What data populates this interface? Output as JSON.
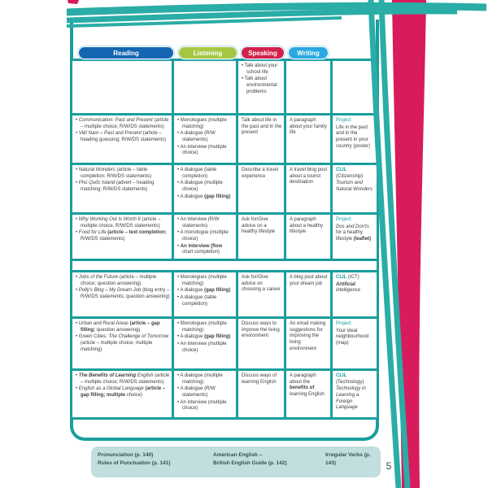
{
  "page": {
    "number": "5"
  },
  "colors": {
    "teal": "#1a9e9e",
    "pink": "#d81b5c",
    "reading_blue": "#1466b3",
    "listening_green": "#a5c844",
    "speaking_red": "#d2224c",
    "writing_cyan": "#2aa8df",
    "footer_bg": "#c3dede"
  },
  "header": {
    "columns": [
      {
        "label": "Reading",
        "color": "#1466b3"
      },
      {
        "label": "Listening",
        "color": "#a5c844"
      },
      {
        "label": "Speaking",
        "color": "#d2224c"
      },
      {
        "label": "Writing",
        "color": "#2aa8df"
      }
    ]
  },
  "table": {
    "rows": [
      {
        "cells": [
          {},
          {},
          {
            "bullets": [
              [
                {
                  "t": "Talk about your school life"
                }
              ],
              [
                {
                  "t": "Talk about environmental problems"
                }
              ]
            ]
          },
          {},
          {}
        ]
      },
      {
        "cells": [
          {
            "bullets": [
              [
                {
                  "t": "Communication: Past and Present ",
                  "s": "i"
                },
                {
                  "t": "(article – multiple choice; R/W/DS statements)"
                }
              ],
              [
                {
                  "t": "Việt Nam – Past and Present ",
                  "s": "i"
                },
                {
                  "t": "(article – heading guessing; R/W/DS statements)"
                }
              ]
            ]
          },
          {
            "bullets": [
              [
                {
                  "t": "Monologues (multiple matching)"
                }
              ],
              [
                {
                  "t": "A dialogue (R/W statements)"
                }
              ],
              [
                {
                  "t": "An interview (multiple choice)"
                }
              ]
            ]
          },
          {
            "lines": [
              [
                {
                  "t": "Talk about life in the past and in the present"
                }
              ]
            ]
          },
          {
            "lines": [
              [
                {
                  "t": "A paragraph about your family life"
                }
              ]
            ]
          },
          {
            "lines": [
              [
                {
                  "t": "Project",
                  "s": "t"
                }
              ],
              [
                {
                  "t": "Life in the past and in the present in your country (poster)"
                }
              ]
            ]
          }
        ]
      },
      {
        "cells": [
          {
            "bullets": [
              [
                {
                  "t": "Natural Wonders ",
                  "s": "i"
                },
                {
                  "t": "(article – table completion; R/W/DS statements)"
                }
              ],
              [
                {
                  "t": "Phú Quốc Island ",
                  "s": "i"
                },
                {
                  "t": "(advert – heading matching; R/W/DS statements)"
                }
              ]
            ]
          },
          {
            "bullets": [
              [
                {
                  "t": "A dialogue (table completion)"
                }
              ],
              [
                {
                  "t": "A dialogue (multiple choice)"
                }
              ],
              [
                {
                  "t": "A dialogue "
                },
                {
                  "t": "(gap filling)",
                  "s": "b"
                }
              ]
            ]
          },
          {
            "lines": [
              [
                {
                  "t": "Describe a travel experience"
                }
              ]
            ]
          },
          {
            "lines": [
              [
                {
                  "t": "A travel blog post about a tourist destination"
                }
              ]
            ]
          },
          {
            "lines": [
              [
                {
                  "t": "CLIL",
                  "s": "tb"
                },
                {
                  "t": " (Citizenship)"
                }
              ],
              [
                {
                  "t": "Tourism and Natural Wonders",
                  "s": "i"
                }
              ]
            ]
          }
        ]
      },
      {
        "cells": [
          {
            "bullets": [
              [
                {
                  "t": "Why Working Out Is Worth It ",
                  "s": "i"
                },
                {
                  "t": "(article – multiple choice, R/W/DS statements)"
                }
              ],
              [
                {
                  "t": "Food for Life ",
                  "s": "i"
                },
                {
                  "t": "(article – text completion;",
                  "s": "b"
                },
                {
                  "t": " R/W/DS statements)"
                }
              ]
            ]
          },
          {
            "bullets": [
              [
                {
                  "t": "An interview (R/W statements)"
                }
              ],
              [
                {
                  "t": "A monologue (multiple choice)"
                }
              ],
              [
                {
                  "t": "An interview (flow",
                  "s": "b"
                },
                {
                  "t": " chart completion)"
                }
              ]
            ]
          },
          {
            "lines": [
              [
                {
                  "t": "Ask for/Give advice on a healthy lifestyle"
                }
              ]
            ]
          },
          {
            "lines": [
              [
                {
                  "t": "A paragraph about a healthy lifestyle"
                }
              ]
            ]
          },
          {
            "lines": [
              [
                {
                  "t": "Project",
                  "s": "t"
                }
              ],
              [
                {
                  "t": "Dos and Don'ts ",
                  "s": "i"
                },
                {
                  "t": "for a healthy lifestyle "
                },
                {
                  "t": "(leaflet)",
                  "s": "b"
                }
              ]
            ]
          }
        ]
      },
      {
        "spacer": true
      },
      {
        "cells": [
          {
            "bullets": [
              [
                {
                  "t": "Jobs of the Future ",
                  "s": "i"
                },
                {
                  "t": "(article – multiple choice; question answering)"
                }
              ],
              [
                {
                  "t": "Polly's Blog – My Dream Job ",
                  "s": "i"
                },
                {
                  "t": "(blog entry – R/W/DS statements; question answering)"
                }
              ]
            ]
          },
          {
            "bullets": [
              [
                {
                  "t": "Monologues (multiple matching)"
                }
              ],
              [
                {
                  "t": "A dialogue "
                },
                {
                  "t": "(gap filling)",
                  "s": "b"
                }
              ],
              [
                {
                  "t": "A dialogue (table completion)"
                }
              ]
            ]
          },
          {
            "lines": [
              [
                {
                  "t": "Ask for/Give advice on choosing a career"
                }
              ]
            ]
          },
          {
            "lines": [
              [
                {
                  "t": "A blog post about your dream job"
                }
              ]
            ]
          },
          {
            "lines": [
              [
                {
                  "t": "CLIL",
                  "s": "tb"
                },
                {
                  "t": " (ICT)"
                }
              ],
              [
                {
                  "t": "Artificial ",
                  "s": "bi"
                },
                {
                  "t": "intelligence",
                  "s": "i"
                }
              ]
            ]
          }
        ]
      },
      {
        "cells": [
          {
            "bullets": [
              [
                {
                  "t": "Urban and Rural Areas ",
                  "s": "i"
                },
                {
                  "t": "(article – gap filling;",
                  "s": "b"
                },
                {
                  "t": " question answering)"
                }
              ],
              [
                {
                  "t": "Green Cities: The Challenge of Tomorrow ",
                  "s": "i"
                },
                {
                  "t": "(article – multiple choice; multiple matching)"
                }
              ]
            ]
          },
          {
            "bullets": [
              [
                {
                  "t": "Monologues (multiple matching)"
                }
              ],
              [
                {
                  "t": "A dialogue "
                },
                {
                  "t": "(gap filling)",
                  "s": "b"
                }
              ],
              [
                {
                  "t": "An interview (multiple choice)"
                }
              ]
            ]
          },
          {
            "lines": [
              [
                {
                  "t": "Discuss ways to improve the living environment"
                }
              ]
            ]
          },
          {
            "lines": [
              [
                {
                  "t": "An email making suggestions for improving the living environment"
                }
              ]
            ]
          },
          {
            "lines": [
              [
                {
                  "t": "Project",
                  "s": "t"
                }
              ],
              [
                {
                  "t": "Your ideal neighbourhood (map)"
                }
              ]
            ]
          }
        ]
      },
      {
        "cells": [
          {
            "bullets": [
              [
                {
                  "t": "The Benefits of Learning ",
                  "s": "bi"
                },
                {
                  "t": "English ",
                  "s": "i"
                },
                {
                  "t": "(article – multiple choice; R/W/DS statements)"
                }
              ],
              [
                {
                  "t": "English as a Global Language ",
                  "s": "i"
                },
                {
                  "t": "(article – gap filling; multiple ",
                  "s": "b"
                },
                {
                  "t": "choice)"
                }
              ]
            ]
          },
          {
            "bullets": [
              [
                {
                  "t": "A dialogue (multiple matching)"
                }
              ],
              [
                {
                  "t": "A dialogue (R/W statements)"
                }
              ],
              [
                {
                  "t": "An interview (multiple choice)"
                }
              ]
            ]
          },
          {
            "lines": [
              [
                {
                  "t": "Discuss ways of learning English"
                }
              ]
            ]
          },
          {
            "lines": [
              [
                {
                  "t": "A paragraph about the "
                },
                {
                  "t": "benefits of",
                  "s": "b"
                },
                {
                  "t": " learning English"
                }
              ]
            ]
          },
          {
            "lines": [
              [
                {
                  "t": "CLIL",
                  "s": "tb"
                },
                {
                  "t": " (Technology)"
                }
              ],
              [
                {
                  "t": "Technology in Learning a Foreign Language",
                  "s": "i"
                }
              ]
            ]
          }
        ]
      }
    ]
  },
  "footer": {
    "items": [
      {
        "lines": [
          "Pronunciation (p. 140)",
          "Rules of Punctuation (p. 141)"
        ]
      },
      {
        "lines": [
          "American English –",
          "British English Guide (p. 142)"
        ]
      },
      {
        "lines": [
          "Irregular Verbs (p. 143)"
        ]
      }
    ]
  }
}
